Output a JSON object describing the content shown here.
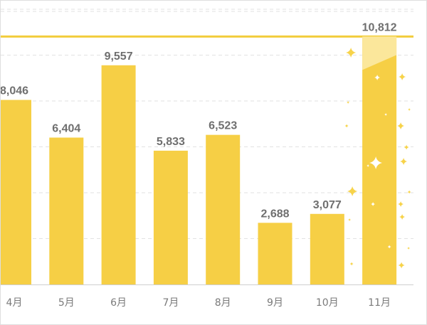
{
  "chart_data": {
    "type": "bar",
    "categories": [
      "4月",
      "5月",
      "6月",
      "7月",
      "8月",
      "9月",
      "10月",
      "11月"
    ],
    "values": [
      8046,
      6404,
      9557,
      5833,
      6523,
      2688,
      3077,
      10812
    ],
    "value_labels": [
      "8,046",
      "6,404",
      "9,557",
      "5,833",
      "6,523",
      "2,688",
      "3,077",
      "10,812"
    ],
    "highlight_category": "11月",
    "reference_line": 10812,
    "ylim": [
      0,
      12000
    ],
    "grid": true,
    "legend": "none",
    "title": "",
    "xlabel": "",
    "ylabel": ""
  },
  "colors": {
    "bar": "#f6cf45",
    "highlight_top": "#fbe79b",
    "reference_line": "#f2cd3c",
    "sparkle": "#f7d34a",
    "grid": "#e2e2e2",
    "axis": "#cfcfcf",
    "value_text": "#6f6f6f",
    "category_text": "#7a7a7a"
  },
  "icons": {
    "sparkles": "sparkle-icon"
  }
}
